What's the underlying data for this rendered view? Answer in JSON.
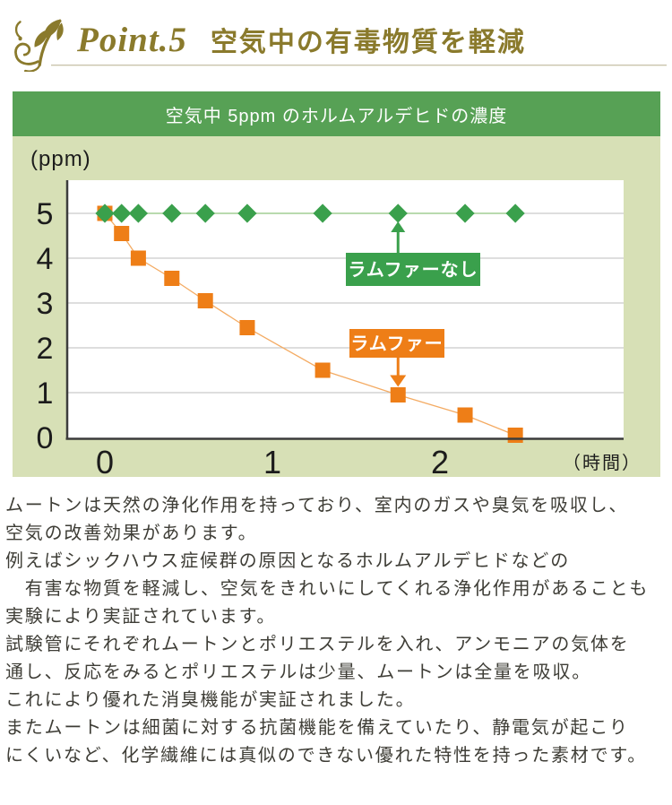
{
  "colors": {
    "accent": "#8a7a2c",
    "panel-bg": "#d7e0b6",
    "bar-green": "#57a155",
    "series-green": "#3aa04c",
    "series-orange": "#ee7e17"
  },
  "header": {
    "point_label": "Point.5",
    "title": "空気中の有毒物質を軽減"
  },
  "chart_panel": {
    "title": "空気中 5ppm のホルムアルデヒドの濃度"
  },
  "chart_data": {
    "type": "line",
    "title": "空気中 5ppm のホルムアルデヒドの濃度",
    "xlabel": "（時間）",
    "ylabel": "(ppm)",
    "x": [
      0,
      0.1,
      0.2,
      0.4,
      0.6,
      0.85,
      1.3,
      1.75,
      2.15,
      2.45
    ],
    "series": [
      {
        "name": "ラムファーなし",
        "marker": "diamond",
        "marker_color": "#3aa04c",
        "line_color": "#b9daae",
        "values": [
          5,
          5,
          5,
          5,
          5,
          5,
          5,
          5,
          5,
          5
        ],
        "callout_point_index": 7
      },
      {
        "name": "ラムファー",
        "marker": "square",
        "marker_color": "#ee7e17",
        "line_color": "#f4ab63",
        "values": [
          5,
          4.55,
          4.0,
          3.55,
          3.05,
          2.45,
          1.5,
          0.95,
          0.5,
          0.05
        ],
        "callout_point_index": 7
      }
    ],
    "xticks": [
      0,
      1,
      2
    ],
    "yticks": [
      5,
      4,
      3,
      2,
      1,
      0
    ],
    "xlim": [
      -0.22,
      3.1
    ],
    "ylim": [
      0,
      5.75
    ],
    "grid": "horizontal",
    "legend_position": "callout-boxes-inside-plot"
  },
  "paragraphs": [
    "ムートンは天然の浄化作用を持っており、室内のガスや臭気を吸収し、",
    "空気の改善効果があります。",
    "例えばシックハウス症候群の原因となるホルムアルデヒドなどの",
    "　有害な物質を軽減し、空気をきれいにしてくれる浄化作用があることも",
    "実験により実証されています。",
    "試験管にそれぞれムートンとポリエステルを入れ、アンモニアの気体を",
    "通し、反応をみるとポリエステルは少量、ムートンは全量を吸収。",
    "これにより優れた消臭機能が実証されました。",
    "またムートンは細菌に対する抗菌機能を備えていたり、静電気が起こり",
    "にくいなど、化学繊維には真似のできない優れた特性を持った素材です。"
  ]
}
